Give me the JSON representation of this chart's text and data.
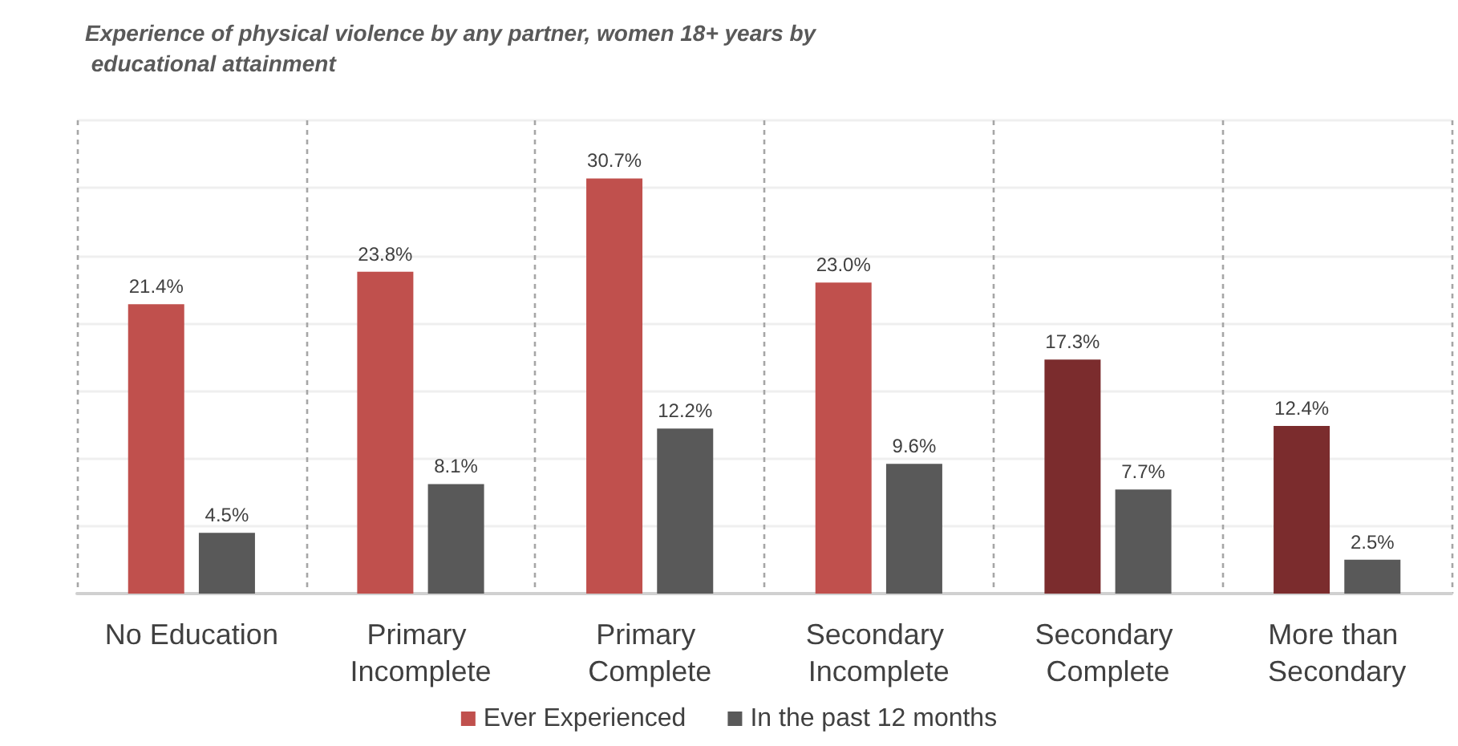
{
  "chart_data": {
    "type": "bar",
    "title": "Experience of physical violence by any partner, women 18+ years by educational attainment",
    "categories": [
      "No Education",
      "Primary Incomplete",
      "Primary Complete",
      "Secondary Incomplete",
      "Secondary Complete",
      "More than Secondary"
    ],
    "series": [
      {
        "name": "Ever Experienced",
        "color": "#c0504d",
        "colors": [
          "#c0504d",
          "#c0504d",
          "#c0504d",
          "#c0504d",
          "#7b2c2d",
          "#7b2c2d"
        ],
        "values": [
          21.4,
          23.8,
          30.7,
          23.0,
          17.3,
          12.4
        ],
        "value_labels": [
          "21.4%",
          "23.8%",
          "30.7%",
          "23.0%",
          "17.3%",
          "12.4%"
        ]
      },
      {
        "name": "In the past 12 months",
        "color": "#595959",
        "values": [
          4.5,
          8.1,
          12.2,
          9.6,
          7.7,
          2.5
        ],
        "value_labels": [
          "4.5%",
          "8.1%",
          "12.2%",
          "9.6%",
          "7.7%",
          "2.5%"
        ]
      }
    ],
    "ylim": [
      0,
      35
    ],
    "yticks": [
      {
        "value": 0,
        "label": null
      },
      {
        "value": 5,
        "label": null
      },
      {
        "value": 10,
        "label": null
      },
      {
        "value": 15,
        "label": null
      },
      {
        "value": 20,
        "label": null
      },
      {
        "value": 25,
        "label": null
      },
      {
        "value": 30,
        "label": null
      },
      {
        "value": 35,
        "label": null
      }
    ],
    "tick_labels": "x",
    "grid": true,
    "legend": "bottom"
  }
}
